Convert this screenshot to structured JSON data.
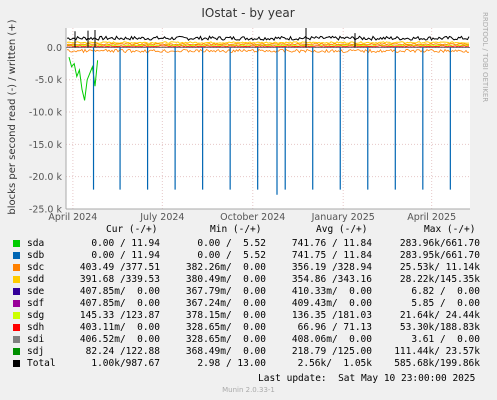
{
  "chart_data": {
    "type": "line",
    "title": "IOstat - by year",
    "ylabel": "blocks per second read (-) / written (+)",
    "ylim": [
      -25000,
      3000
    ],
    "y_ticks": [
      "0.0",
      "-5.0 k",
      "-10.0 k",
      "-15.0 k",
      "-20.0 k",
      "-25.0 k"
    ],
    "x_ticks": [
      "April 2024",
      "July 2024",
      "October 2024",
      "January 2025",
      "April 2025"
    ],
    "grid": true,
    "side_label": "RRDTOOL / TOBI OETIKER",
    "x_range": [
      "2024-03-25",
      "2025-05-10"
    ],
    "spike_dates": [
      "2024-04-22",
      "2024-05-19",
      "2024-06-16",
      "2024-07-14",
      "2024-08-11",
      "2024-09-08",
      "2024-10-06",
      "2024-11-03",
      "2024-12-01",
      "2024-12-29",
      "2025-01-26",
      "2025-02-23",
      "2025-03-23",
      "2025-04-20"
    ],
    "spike_value": -22000,
    "series": [
      {
        "name": "sda",
        "color": "#00cc00"
      },
      {
        "name": "sdb",
        "color": "#0066b3"
      },
      {
        "name": "sdc",
        "color": "#ff8000"
      },
      {
        "name": "sdd",
        "color": "#ffcc00"
      },
      {
        "name": "sde",
        "color": "#330099"
      },
      {
        "name": "sdf",
        "color": "#990099"
      },
      {
        "name": "sdg",
        "color": "#ccff00"
      },
      {
        "name": "sdh",
        "color": "#ff0000"
      },
      {
        "name": "sdi",
        "color": "#808080"
      },
      {
        "name": "sdj",
        "color": "#008f00"
      },
      {
        "name": "Total",
        "color": "#000000"
      }
    ]
  },
  "legend": {
    "headers": {
      "cur": "Cur (-/+)",
      "min": "Min (-/+)",
      "avg": "Avg (-/+)",
      "max": "Max (-/+)"
    },
    "rows": [
      {
        "name": "sda",
        "color": "#00cc00",
        "cur": "0.00 / 11.94",
        "min": "0.00 /  5.52",
        "avg": "741.76 / 11.84",
        "max": "283.96k/661.70"
      },
      {
        "name": "sdb",
        "color": "#0066b3",
        "cur": "0.00 / 11.94",
        "min": "0.00 /  5.52",
        "avg": "741.75 / 11.84",
        "max": "283.95k/661.70"
      },
      {
        "name": "sdc",
        "color": "#ff8000",
        "cur": "403.49 /377.51",
        "min": "382.26m/  0.00",
        "avg": "356.19 /328.94",
        "max": "25.53k/ 11.14k"
      },
      {
        "name": "sdd",
        "color": "#ffcc00",
        "cur": "391.68 /339.53",
        "min": "380.49m/  0.00",
        "avg": "354.86 /343.16",
        "max": "28.22k/145.35k"
      },
      {
        "name": "sde",
        "color": "#330099",
        "cur": "407.85m/  0.00",
        "min": "367.79m/  0.00",
        "avg": "410.33m/  0.00",
        "max": "6.82 /  0.00"
      },
      {
        "name": "sdf",
        "color": "#990099",
        "cur": "407.85m/  0.00",
        "min": "367.24m/  0.00",
        "avg": "409.43m/  0.00",
        "max": "5.85 /  0.00"
      },
      {
        "name": "sdg",
        "color": "#ccff00",
        "cur": "145.33 /123.87",
        "min": "378.15m/  0.00",
        "avg": "136.35 /181.03",
        "max": "21.64k/ 24.44k"
      },
      {
        "name": "sdh",
        "color": "#ff0000",
        "cur": "403.11m/  0.00",
        "min": "328.65m/  0.00",
        "avg": "66.96 / 71.13",
        "max": "53.30k/188.83k"
      },
      {
        "name": "sdi",
        "color": "#808080",
        "cur": "406.52m/  0.00",
        "min": "328.65m/  0.00",
        "avg": "408.06m/  0.00",
        "max": "3.61 /  0.00"
      },
      {
        "name": "sdj",
        "color": "#008f00",
        "cur": "82.24 /122.88",
        "min": "368.49m/  0.00",
        "avg": "218.79 /125.00",
        "max": "111.44k/ 23.57k"
      },
      {
        "name": "Total",
        "color": "#000000",
        "cur": "1.00k/987.67",
        "min": "2.98 / 13.00",
        "avg": "2.56k/  1.05k",
        "max": "585.68k/199.86k"
      }
    ],
    "last_update": "Last update:  Sat May 10 23:00:00 2025"
  },
  "footer": {
    "version": "Munin 2.0.33-1"
  }
}
